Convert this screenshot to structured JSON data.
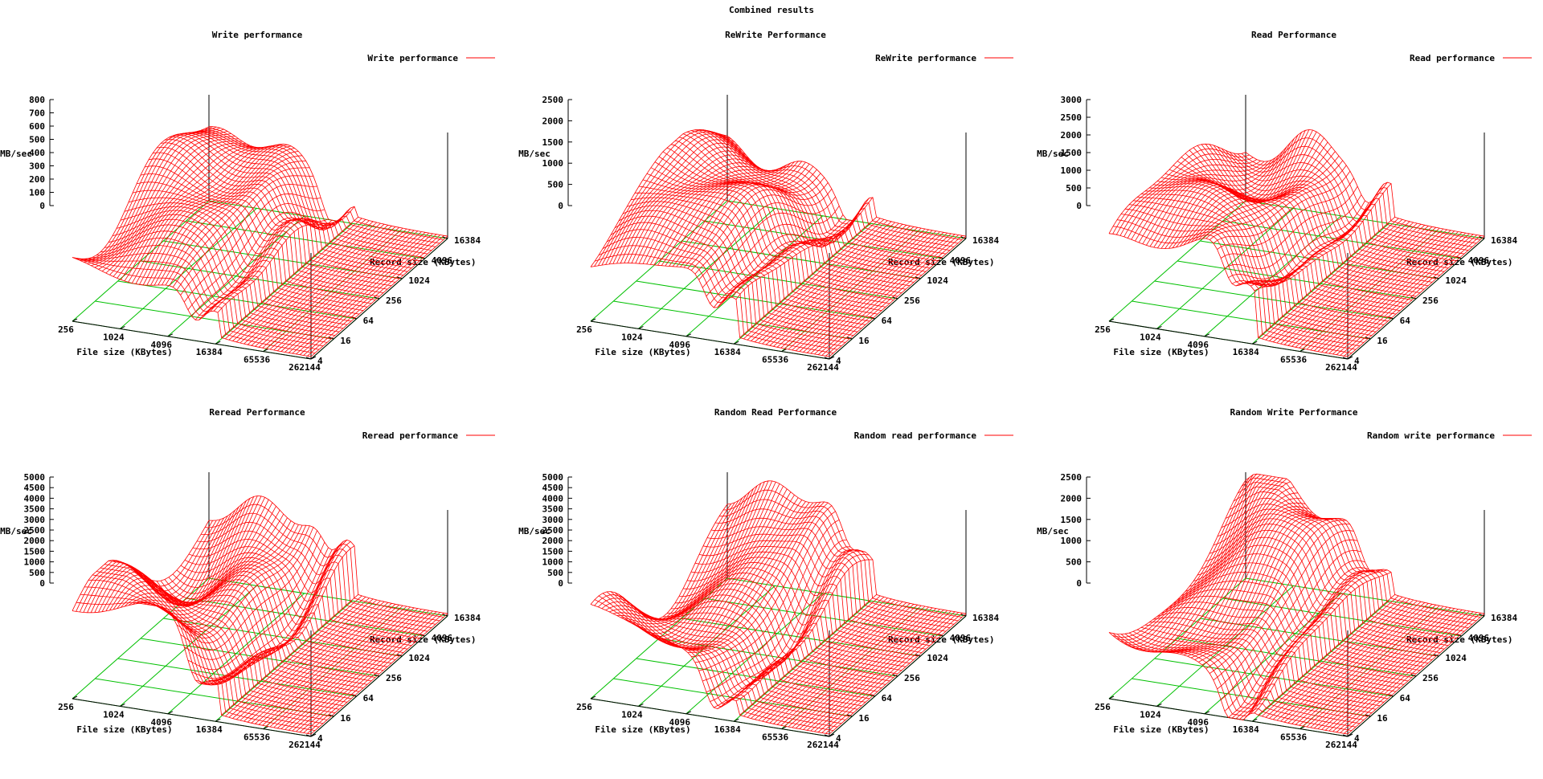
{
  "title": "Combined results",
  "colors": {
    "surface": "#ff0000",
    "grid": "#00c000",
    "axis": "#000000"
  },
  "chart_data": [
    {
      "type": "surface",
      "title": "Write performance",
      "legend": "Write performance",
      "zlabel": "MB/sec",
      "xlabel": "File size (KBytes)",
      "ylabel": "Record size (KBytes)",
      "zticks": [
        "0",
        "100",
        "200",
        "300",
        "400",
        "500",
        "600",
        "700",
        "800"
      ],
      "zlim": [
        0,
        800
      ],
      "xticks": [
        "256",
        "1024",
        "4096",
        "16384",
        "65536",
        "262144"
      ],
      "yticks": [
        "4",
        "16",
        "64",
        "256",
        "1024",
        "4096",
        "16384"
      ],
      "peak": 650,
      "base": 300,
      "seed": 1
    },
    {
      "type": "surface",
      "title": "ReWrite Performance",
      "legend": "ReWrite performance",
      "zlabel": "MB/sec",
      "xlabel": "File size (KBytes)",
      "ylabel": "Record size (KBytes)",
      "zticks": [
        "0",
        "500",
        "1000",
        "1500",
        "2000",
        "2500"
      ],
      "zlim": [
        0,
        2500
      ],
      "xticks": [
        "256",
        "1024",
        "4096",
        "16384",
        "65536",
        "262144"
      ],
      "yticks": [
        "4",
        "16",
        "64",
        "256",
        "1024",
        "4096",
        "16384"
      ],
      "peak": 2300,
      "base": 800,
      "seed": 2
    },
    {
      "type": "surface",
      "title": "Read Performance",
      "legend": "Read performance",
      "zlabel": "MB/sec",
      "xlabel": "File size (KBytes)",
      "ylabel": "Record size (KBytes)",
      "zticks": [
        "0",
        "500",
        "1000",
        "1500",
        "2000",
        "2500",
        "3000"
      ],
      "zlim": [
        0,
        3000
      ],
      "xticks": [
        "256",
        "1024",
        "4096",
        "16384",
        "65536",
        "262144"
      ],
      "yticks": [
        "4",
        "16",
        "64",
        "256",
        "1024",
        "4096",
        "16384"
      ],
      "peak": 2900,
      "base": 1300,
      "seed": 3
    },
    {
      "type": "surface",
      "title": "Reread Performance",
      "legend": "Reread performance",
      "zlabel": "MB/sec",
      "xlabel": "File size (KBytes)",
      "ylabel": "Record size (KBytes)",
      "zticks": [
        "0",
        "500",
        "1000",
        "1500",
        "2000",
        "2500",
        "3000",
        "3500",
        "4000",
        "4500",
        "5000"
      ],
      "zlim": [
        0,
        5000
      ],
      "xticks": [
        "256",
        "1024",
        "4096",
        "16384",
        "65536",
        "262144"
      ],
      "yticks": [
        "4",
        "16",
        "64",
        "256",
        "1024",
        "4096",
        "16384"
      ],
      "peak": 5000,
      "base": 1500,
      "seed": 4
    },
    {
      "type": "surface",
      "title": "Random Read Performance",
      "legend": "Random read performance",
      "zlabel": "MB/sec",
      "xlabel": "File size (KBytes)",
      "ylabel": "Record size (KBytes)",
      "zticks": [
        "0",
        "500",
        "1000",
        "1500",
        "2000",
        "2500",
        "3000",
        "3500",
        "4000",
        "4500",
        "5000"
      ],
      "zlim": [
        0,
        5000
      ],
      "xticks": [
        "256",
        "1024",
        "4096",
        "16384",
        "65536",
        "262144"
      ],
      "yticks": [
        "4",
        "16",
        "64",
        "256",
        "1024",
        "4096",
        "16384"
      ],
      "peak": 4700,
      "base": 1200,
      "seed": 5
    },
    {
      "type": "surface",
      "title": "Random Write Performance",
      "legend": "Random write performance",
      "zlabel": "MB/sec",
      "xlabel": "File size (KBytes)",
      "ylabel": "Record size (KBytes)",
      "zticks": [
        "0",
        "500",
        "1000",
        "1500",
        "2000",
        "2500"
      ],
      "zlim": [
        0,
        2500
      ],
      "xticks": [
        "256",
        "1024",
        "4096",
        "16384",
        "65536",
        "262144"
      ],
      "yticks": [
        "4",
        "16",
        "64",
        "256",
        "1024",
        "4096",
        "16384"
      ],
      "peak": 2300,
      "base": 700,
      "seed": 6
    }
  ]
}
